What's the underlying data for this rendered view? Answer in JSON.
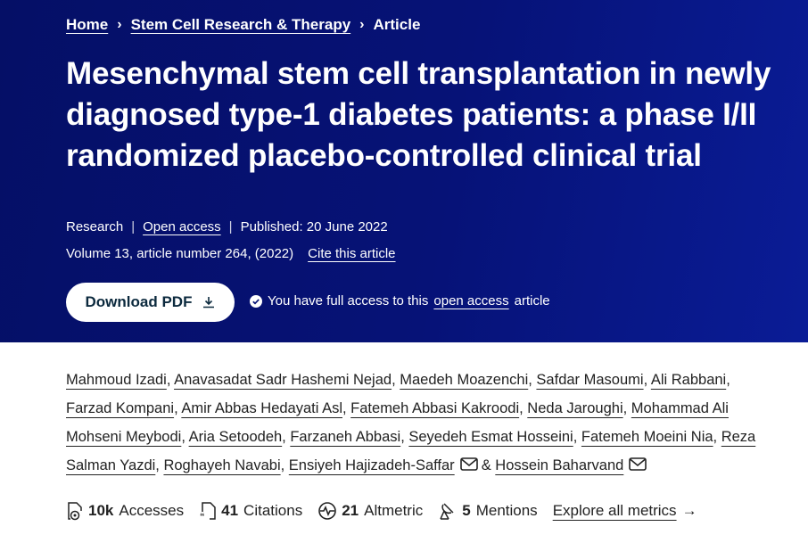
{
  "breadcrumb": [
    {
      "label": "Home"
    },
    {
      "label": "Stem Cell Research & Therapy"
    },
    {
      "label": "Article"
    }
  ],
  "title": "Mesenchymal stem cell transplantation in newly diagnosed type-1 diabetes patients: a phase I/II randomized placebo-controlled clinical trial",
  "meta": {
    "type": "Research",
    "access": "Open access",
    "published": "Published: 20 June 2022",
    "volume": "Volume 13, article number 264, (2022)",
    "cite": "Cite this article"
  },
  "download_label": "Download PDF",
  "access_notice": {
    "prefix": "You have full access to this",
    "link": "open access",
    "suffix": "article"
  },
  "authors": [
    {
      "name": "Mahmoud Izadi"
    },
    {
      "name": "Anavasadat Sadr Hashemi Nejad"
    },
    {
      "name": "Maedeh Moazenchi"
    },
    {
      "name": "Safdar Masoumi"
    },
    {
      "name": "Ali Rabbani"
    },
    {
      "name": "Farzad Kompani"
    },
    {
      "name": "Amir Abbas Hedayati Asl"
    },
    {
      "name": "Fatemeh Abbasi Kakroodi"
    },
    {
      "name": "Neda Jaroughi"
    },
    {
      "name": "Mohammad Ali Mohseni Meybodi"
    },
    {
      "name": "Aria Setoodeh"
    },
    {
      "name": "Farzaneh Abbasi"
    },
    {
      "name": "Seyedeh Esmat Hosseini"
    },
    {
      "name": "Fatemeh Moeini Nia"
    },
    {
      "name": "Reza Salman Yazdi"
    },
    {
      "name": "Roghayeh Navabi"
    },
    {
      "name": "Ensiyeh Hajizadeh-Saffar",
      "email": true
    },
    {
      "name": "Hossein Baharvand",
      "email": true
    }
  ],
  "authors_last_sep": "&",
  "metrics": [
    {
      "icon": "accesses-icon",
      "value": "10k",
      "label": "Accesses"
    },
    {
      "icon": "citations-icon",
      "value": "41",
      "label": "Citations"
    },
    {
      "icon": "altmetric-icon",
      "value": "21",
      "label": "Altmetric"
    },
    {
      "icon": "mentions-icon",
      "value": "5",
      "label": "Mentions"
    }
  ],
  "explore_label": "Explore all metrics"
}
